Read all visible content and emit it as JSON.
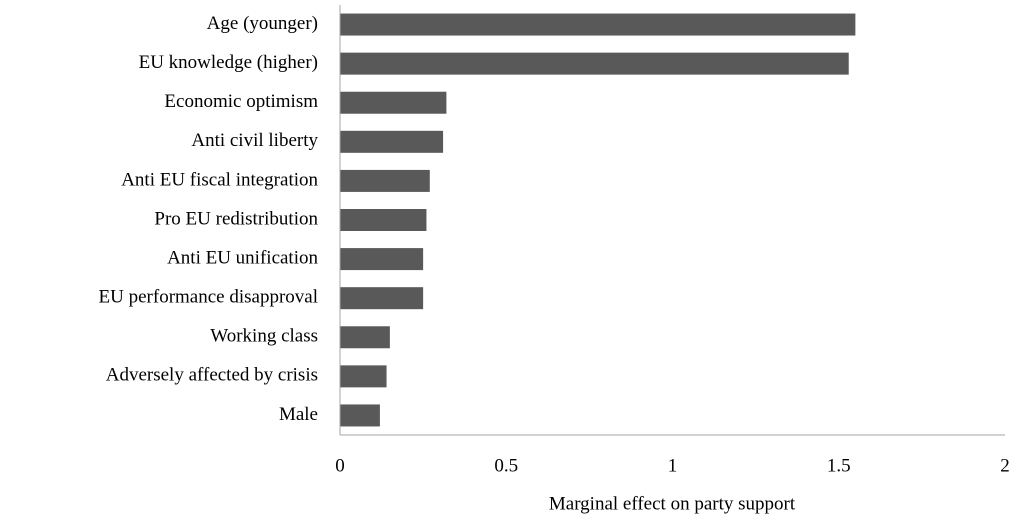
{
  "chart_data": {
    "type": "hbar",
    "xlabel": "Marginal effect on party support",
    "categories": [
      "Age (younger)",
      "EU knowledge (higher)",
      "Economic optimism",
      "Anti civil liberty",
      "Anti EU fiscal integration",
      "Pro EU redistribution",
      "Anti EU unification",
      "EU performance disapproval",
      "Working class",
      "Adversely affected by crisis",
      "Male"
    ],
    "values": [
      1.55,
      1.53,
      0.32,
      0.31,
      0.27,
      0.26,
      0.25,
      0.25,
      0.15,
      0.14,
      0.12
    ],
    "color": "#595959",
    "xlim": [
      0,
      2
    ],
    "xticks": [
      0,
      0.5,
      1,
      1.5,
      2
    ],
    "grid": false
  }
}
